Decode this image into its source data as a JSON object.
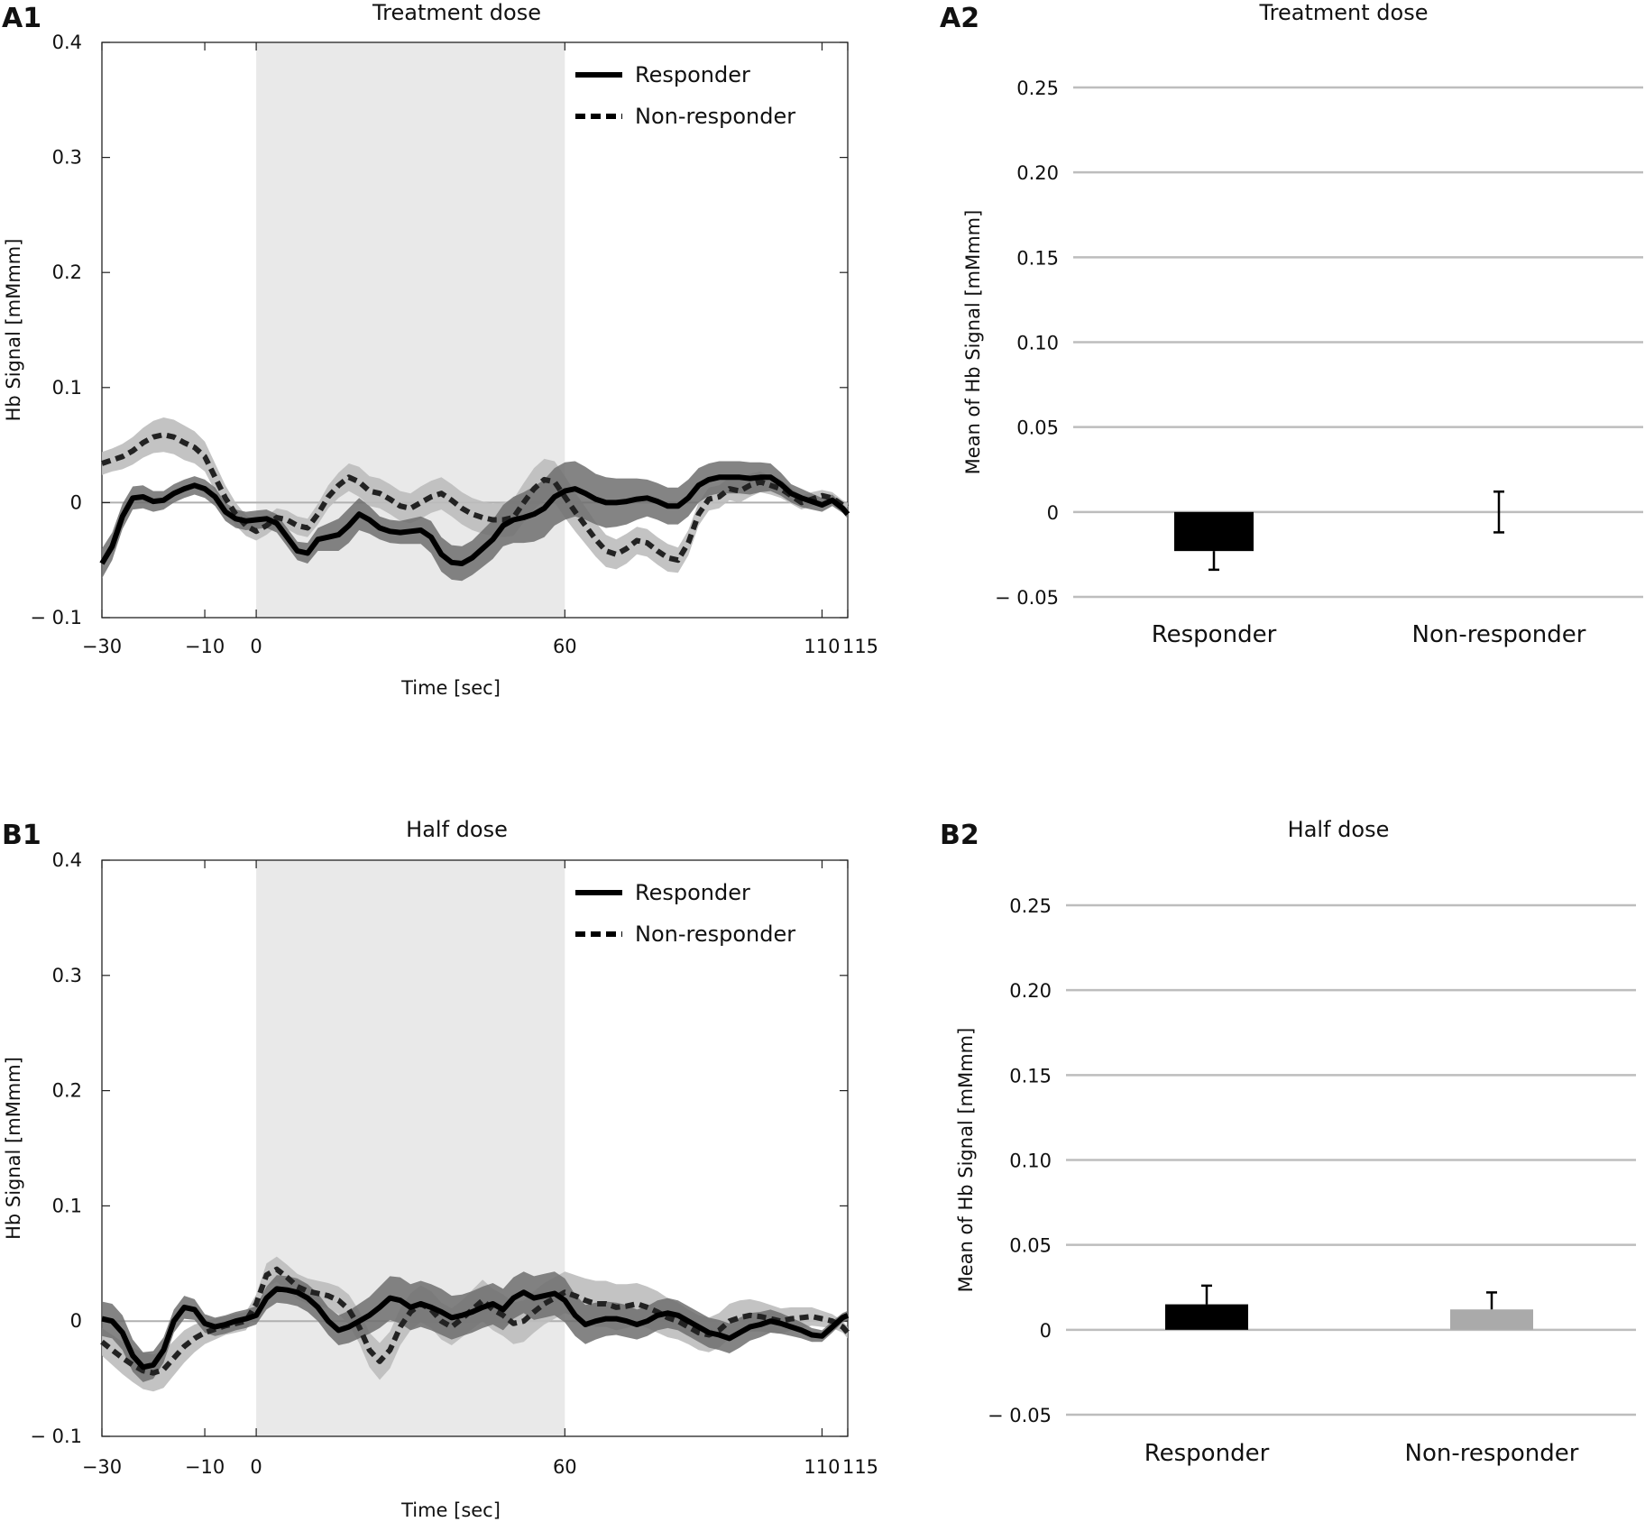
{
  "chart_data": [
    {
      "panel": "A1",
      "type": "line",
      "title": "Treatment dose",
      "xlabel": "Time [sec]",
      "ylabel": "Hb Signal [mMmm]",
      "xlim": [
        -30,
        115
      ],
      "ylim": [
        -0.1,
        0.4
      ],
      "x_ticks": [
        -30,
        -10,
        0,
        60,
        110,
        115
      ],
      "x_tick_labels": [
        "−30",
        "−10",
        "0",
        "60",
        "110",
        "115"
      ],
      "y_ticks": [
        -0.1,
        0,
        0.1,
        0.2,
        0.3,
        0.4
      ],
      "y_tick_labels": [
        "− 0.1",
        "0",
        "0.1",
        "0.2",
        "0.3",
        "0.4"
      ],
      "task_period": [
        0,
        60
      ],
      "series": [
        {
          "name": "Responder",
          "style": "solid",
          "x": [
            -30,
            -28,
            -26,
            -24,
            -22,
            -20,
            -18,
            -16,
            -14,
            -12,
            -10,
            -8,
            -6,
            -4,
            -2,
            0,
            2,
            4,
            6,
            8,
            10,
            12,
            14,
            16,
            18,
            20,
            22,
            24,
            26,
            28,
            30,
            32,
            34,
            36,
            38,
            40,
            42,
            44,
            46,
            48,
            50,
            52,
            54,
            56,
            58,
            60,
            62,
            64,
            66,
            68,
            70,
            72,
            74,
            76,
            78,
            80,
            82,
            84,
            86,
            88,
            90,
            92,
            94,
            96,
            98,
            100,
            102,
            104,
            106,
            108,
            110,
            112,
            114,
            115
          ],
          "values": [
            -0.053,
            -0.038,
            -0.012,
            0.004,
            0.005,
            0.001,
            0.002,
            0.008,
            0.012,
            0.015,
            0.012,
            0.005,
            -0.008,
            -0.014,
            -0.016,
            -0.015,
            -0.014,
            -0.018,
            -0.03,
            -0.042,
            -0.044,
            -0.032,
            -0.03,
            -0.028,
            -0.02,
            -0.01,
            -0.015,
            -0.022,
            -0.025,
            -0.026,
            -0.025,
            -0.024,
            -0.03,
            -0.045,
            -0.052,
            -0.053,
            -0.048,
            -0.04,
            -0.032,
            -0.02,
            -0.015,
            -0.013,
            -0.01,
            -0.005,
            0.005,
            0.01,
            0.012,
            0.008,
            0.003,
            0.0,
            0.0,
            0.001,
            0.003,
            0.004,
            0.001,
            -0.003,
            -0.003,
            0.004,
            0.015,
            0.02,
            0.022,
            0.022,
            0.022,
            0.021,
            0.022,
            0.022,
            0.016,
            0.008,
            0.004,
            0.001,
            -0.002,
            0.002,
            -0.005,
            -0.01
          ],
          "band": [
            0.013,
            0.012,
            0.011,
            0.01,
            0.01,
            0.009,
            0.008,
            0.008,
            0.008,
            0.008,
            0.008,
            0.008,
            0.008,
            0.008,
            0.008,
            0.008,
            0.008,
            0.008,
            0.008,
            0.008,
            0.009,
            0.01,
            0.012,
            0.014,
            0.015,
            0.014,
            0.012,
            0.01,
            0.01,
            0.01,
            0.011,
            0.012,
            0.014,
            0.015,
            0.015,
            0.015,
            0.015,
            0.016,
            0.017,
            0.018,
            0.02,
            0.022,
            0.024,
            0.025,
            0.025,
            0.025,
            0.024,
            0.023,
            0.022,
            0.022,
            0.021,
            0.02,
            0.018,
            0.016,
            0.016,
            0.016,
            0.016,
            0.016,
            0.015,
            0.014,
            0.014,
            0.014,
            0.014,
            0.014,
            0.013,
            0.012,
            0.01,
            0.008,
            0.008,
            0.007,
            0.006,
            0.005,
            0.004,
            0.004
          ]
        },
        {
          "name": "Non-responder",
          "style": "dashed",
          "x": [
            -30,
            -28,
            -26,
            -24,
            -22,
            -20,
            -18,
            -16,
            -14,
            -12,
            -10,
            -8,
            -6,
            -4,
            -2,
            0,
            2,
            4,
            6,
            8,
            10,
            12,
            14,
            16,
            18,
            20,
            22,
            24,
            26,
            28,
            30,
            32,
            34,
            36,
            38,
            40,
            42,
            44,
            46,
            48,
            50,
            52,
            54,
            56,
            58,
            60,
            62,
            64,
            66,
            68,
            70,
            72,
            74,
            76,
            78,
            80,
            82,
            84,
            86,
            88,
            90,
            92,
            94,
            96,
            98,
            100,
            102,
            104,
            106,
            108,
            110,
            112,
            114,
            115
          ],
          "values": [
            0.034,
            0.037,
            0.04,
            0.045,
            0.052,
            0.057,
            0.059,
            0.057,
            0.052,
            0.048,
            0.04,
            0.022,
            0.004,
            -0.01,
            -0.02,
            -0.025,
            -0.02,
            -0.013,
            -0.015,
            -0.02,
            -0.022,
            -0.01,
            0.005,
            0.015,
            0.022,
            0.018,
            0.01,
            0.008,
            0.003,
            -0.003,
            -0.005,
            0.0,
            0.005,
            0.008,
            0.002,
            -0.005,
            -0.01,
            -0.013,
            -0.015,
            -0.015,
            -0.013,
            0.0,
            0.012,
            0.02,
            0.018,
            0.005,
            -0.008,
            -0.02,
            -0.032,
            -0.042,
            -0.045,
            -0.04,
            -0.033,
            -0.035,
            -0.042,
            -0.048,
            -0.05,
            -0.035,
            -0.01,
            0.003,
            0.005,
            0.012,
            0.01,
            0.015,
            0.018,
            0.015,
            0.012,
            0.006,
            0.0,
            0.003,
            0.006,
            0.004,
            -0.002,
            -0.004
          ],
          "band": [
            0.01,
            0.01,
            0.011,
            0.012,
            0.013,
            0.014,
            0.015,
            0.015,
            0.015,
            0.014,
            0.013,
            0.012,
            0.011,
            0.01,
            0.009,
            0.008,
            0.008,
            0.008,
            0.008,
            0.008,
            0.008,
            0.009,
            0.01,
            0.011,
            0.012,
            0.013,
            0.013,
            0.013,
            0.013,
            0.013,
            0.013,
            0.014,
            0.014,
            0.014,
            0.014,
            0.014,
            0.014,
            0.014,
            0.014,
            0.015,
            0.016,
            0.017,
            0.018,
            0.018,
            0.018,
            0.018,
            0.017,
            0.016,
            0.015,
            0.014,
            0.013,
            0.013,
            0.012,
            0.012,
            0.012,
            0.012,
            0.011,
            0.011,
            0.01,
            0.01,
            0.01,
            0.01,
            0.01,
            0.01,
            0.009,
            0.008,
            0.008,
            0.007,
            0.006,
            0.006,
            0.005,
            0.005,
            0.004,
            0.004
          ]
        }
      ]
    },
    {
      "panel": "A2",
      "type": "bar",
      "title": "Treatment dose",
      "ylabel": "Mean of Hb Signal [mMmm]",
      "ylim": [
        -0.05,
        0.25
      ],
      "y_ticks": [
        -0.05,
        0,
        0.05,
        0.1,
        0.15,
        0.2,
        0.25
      ],
      "y_tick_labels": [
        "− 0.05",
        "0",
        "0.05",
        "0.10",
        "0.15",
        "0.20",
        "0.25"
      ],
      "categories": [
        "Responder",
        "Non-responder"
      ],
      "values": [
        -0.023,
        0.0
      ],
      "errors": [
        0.011,
        0.012
      ],
      "colors": [
        "#000000",
        "#aaaaaa"
      ]
    },
    {
      "panel": "B1",
      "type": "line",
      "title": "Half dose",
      "xlabel": "Time [sec]",
      "ylabel": "Hb Signal [mMmm]",
      "xlim": [
        -30,
        115
      ],
      "ylim": [
        -0.1,
        0.4
      ],
      "x_ticks": [
        -30,
        -10,
        0,
        60,
        110,
        115
      ],
      "x_tick_labels": [
        "−30",
        "−10",
        "0",
        "60",
        "110",
        "115"
      ],
      "y_ticks": [
        -0.1,
        0,
        0.1,
        0.2,
        0.3,
        0.4
      ],
      "y_tick_labels": [
        "− 0.1",
        "0",
        "0.1",
        "0.2",
        "0.3",
        "0.4"
      ],
      "task_period": [
        0,
        60
      ],
      "series": [
        {
          "name": "Responder",
          "style": "solid",
          "x": [
            -30,
            -28,
            -26,
            -24,
            -22,
            -20,
            -18,
            -16,
            -14,
            -12,
            -10,
            -8,
            -6,
            -4,
            -2,
            0,
            2,
            4,
            6,
            8,
            10,
            12,
            14,
            16,
            18,
            20,
            22,
            24,
            26,
            28,
            30,
            32,
            34,
            36,
            38,
            40,
            42,
            44,
            46,
            48,
            50,
            52,
            54,
            56,
            58,
            60,
            62,
            64,
            66,
            68,
            70,
            72,
            74,
            76,
            78,
            80,
            82,
            84,
            86,
            88,
            90,
            92,
            94,
            96,
            98,
            100,
            102,
            104,
            106,
            108,
            110,
            112,
            114,
            115
          ],
          "values": [
            0.002,
            0.0,
            -0.01,
            -0.03,
            -0.04,
            -0.038,
            -0.025,
            0.0,
            0.012,
            0.01,
            -0.002,
            -0.005,
            -0.003,
            0.0,
            0.002,
            0.005,
            0.02,
            0.028,
            0.027,
            0.025,
            0.02,
            0.012,
            0.0,
            -0.008,
            -0.005,
            0.0,
            0.005,
            0.012,
            0.02,
            0.018,
            0.012,
            0.015,
            0.012,
            0.008,
            0.003,
            0.005,
            0.008,
            0.012,
            0.015,
            0.01,
            0.02,
            0.025,
            0.02,
            0.022,
            0.024,
            0.018,
            0.005,
            -0.003,
            0.0,
            0.002,
            0.002,
            0.0,
            -0.003,
            0.0,
            0.005,
            0.007,
            0.005,
            0.0,
            -0.005,
            -0.01,
            -0.012,
            -0.015,
            -0.01,
            -0.005,
            -0.003,
            0.0,
            -0.002,
            -0.005,
            -0.008,
            -0.012,
            -0.013,
            -0.005,
            0.003,
            0.005
          ],
          "band": [
            0.015,
            0.015,
            0.015,
            0.014,
            0.013,
            0.012,
            0.011,
            0.01,
            0.01,
            0.009,
            0.008,
            0.008,
            0.008,
            0.008,
            0.008,
            0.008,
            0.01,
            0.012,
            0.012,
            0.012,
            0.012,
            0.012,
            0.012,
            0.013,
            0.014,
            0.015,
            0.016,
            0.018,
            0.019,
            0.02,
            0.02,
            0.02,
            0.02,
            0.02,
            0.019,
            0.018,
            0.018,
            0.018,
            0.018,
            0.018,
            0.018,
            0.018,
            0.019,
            0.019,
            0.019,
            0.019,
            0.018,
            0.017,
            0.016,
            0.015,
            0.014,
            0.014,
            0.013,
            0.013,
            0.013,
            0.013,
            0.013,
            0.013,
            0.013,
            0.013,
            0.013,
            0.013,
            0.013,
            0.012,
            0.011,
            0.01,
            0.009,
            0.008,
            0.007,
            0.006,
            0.005,
            0.005,
            0.004,
            0.004
          ]
        },
        {
          "name": "Non-responder",
          "style": "dashed",
          "x": [
            -30,
            -28,
            -26,
            -24,
            -22,
            -20,
            -18,
            -16,
            -14,
            -12,
            -10,
            -8,
            -6,
            -4,
            -2,
            0,
            2,
            4,
            6,
            8,
            10,
            12,
            14,
            16,
            18,
            20,
            22,
            24,
            26,
            28,
            30,
            32,
            34,
            36,
            38,
            40,
            42,
            44,
            46,
            48,
            50,
            52,
            54,
            56,
            58,
            60,
            62,
            64,
            66,
            68,
            70,
            72,
            74,
            76,
            78,
            80,
            82,
            84,
            86,
            88,
            90,
            92,
            94,
            96,
            98,
            100,
            102,
            104,
            106,
            108,
            110,
            112,
            114,
            115
          ],
          "values": [
            -0.018,
            -0.025,
            -0.032,
            -0.038,
            -0.043,
            -0.045,
            -0.042,
            -0.032,
            -0.022,
            -0.015,
            -0.01,
            -0.007,
            -0.004,
            -0.002,
            0.0,
            0.015,
            0.04,
            0.045,
            0.038,
            0.03,
            0.026,
            0.024,
            0.022,
            0.018,
            0.01,
            -0.005,
            -0.025,
            -0.035,
            -0.025,
            -0.005,
            0.008,
            0.015,
            0.01,
            0.0,
            -0.005,
            0.002,
            0.01,
            0.018,
            0.01,
            0.005,
            -0.002,
            0.0,
            0.008,
            0.015,
            0.02,
            0.025,
            0.022,
            0.018,
            0.015,
            0.015,
            0.012,
            0.013,
            0.015,
            0.012,
            0.008,
            0.003,
            0.0,
            -0.005,
            -0.01,
            -0.012,
            -0.008,
            0.0,
            0.003,
            0.005,
            0.004,
            0.002,
            0.0,
            0.002,
            0.003,
            0.004,
            0.002,
            0.0,
            -0.005,
            -0.01
          ],
          "band": [
            0.012,
            0.013,
            0.014,
            0.015,
            0.016,
            0.016,
            0.016,
            0.015,
            0.014,
            0.012,
            0.01,
            0.009,
            0.008,
            0.008,
            0.008,
            0.008,
            0.01,
            0.011,
            0.011,
            0.011,
            0.011,
            0.011,
            0.011,
            0.012,
            0.013,
            0.014,
            0.015,
            0.016,
            0.016,
            0.016,
            0.016,
            0.016,
            0.016,
            0.016,
            0.016,
            0.016,
            0.017,
            0.018,
            0.018,
            0.018,
            0.018,
            0.018,
            0.018,
            0.018,
            0.018,
            0.018,
            0.018,
            0.019,
            0.02,
            0.02,
            0.02,
            0.019,
            0.018,
            0.018,
            0.018,
            0.017,
            0.016,
            0.015,
            0.015,
            0.015,
            0.015,
            0.015,
            0.015,
            0.014,
            0.013,
            0.012,
            0.011,
            0.01,
            0.009,
            0.008,
            0.007,
            0.006,
            0.005,
            0.005
          ]
        }
      ]
    },
    {
      "panel": "B2",
      "type": "bar",
      "title": "Half dose",
      "ylabel": "Mean of Hb Signal [mMmm]",
      "ylim": [
        -0.05,
        0.25
      ],
      "y_ticks": [
        -0.05,
        0,
        0.05,
        0.1,
        0.15,
        0.2,
        0.25
      ],
      "y_tick_labels": [
        "− 0.05",
        "0",
        "0.05",
        "0.10",
        "0.15",
        "0.20",
        "0.25"
      ],
      "categories": [
        "Responder",
        "Non-responder"
      ],
      "values": [
        0.015,
        0.012
      ],
      "errors": [
        0.011,
        0.01
      ],
      "colors": [
        "#000000",
        "#aaaaaa"
      ]
    }
  ]
}
